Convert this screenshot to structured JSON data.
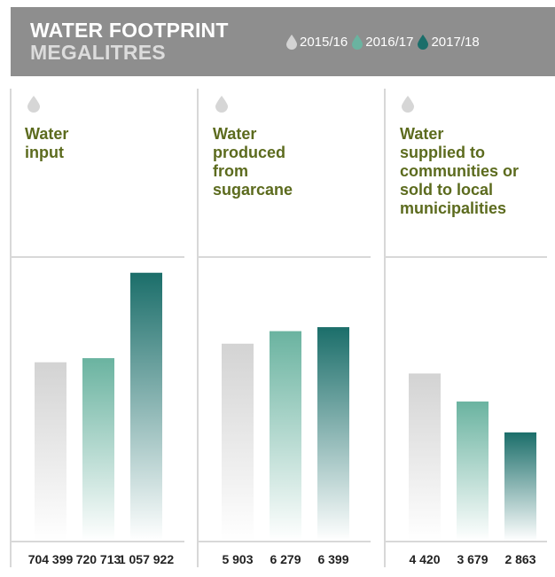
{
  "header": {
    "title": "WATER FOOTPRINT",
    "subtitle": "MEGALITRES"
  },
  "legend": [
    {
      "label": "2015/16",
      "color": "#d3d3d3"
    },
    {
      "label": "2016/17",
      "color": "#6ab3a0"
    },
    {
      "label": "2017/18",
      "color": "#1b6e6a"
    }
  ],
  "panels": [
    {
      "title_lines": [
        "Water",
        "input"
      ]
    },
    {
      "title_lines": [
        "Water",
        "produced",
        "from",
        "sugarcane"
      ]
    },
    {
      "title_lines": [
        "Water",
        "supplied to",
        "communities or",
        "sold to local",
        "municipalities"
      ]
    }
  ],
  "chart_data": [
    {
      "type": "bar",
      "title": "Water input",
      "categories": [
        "2015/16",
        "2016/17",
        "2017/18"
      ],
      "values": [
        704399,
        720713,
        1057922
      ],
      "labels": [
        "704 399",
        "720 713",
        "1 057 922"
      ],
      "ylim": [
        0,
        1120000
      ]
    },
    {
      "type": "bar",
      "title": "Water produced from sugarcane",
      "categories": [
        "2015/16",
        "2016/17",
        "2017/18"
      ],
      "values": [
        5903,
        6279,
        6399
      ],
      "labels": [
        "5 903",
        "6 279",
        "6 399"
      ],
      "ylim": [
        0,
        8500
      ]
    },
    {
      "type": "bar",
      "title": "Water supplied to communities or sold to local municipalities",
      "categories": [
        "2015/16",
        "2016/17",
        "2017/18"
      ],
      "values": [
        4420,
        3679,
        2863
      ],
      "labels": [
        "4 420",
        "3 679",
        "2 863"
      ],
      "ylim": [
        0,
        7500
      ]
    }
  ]
}
